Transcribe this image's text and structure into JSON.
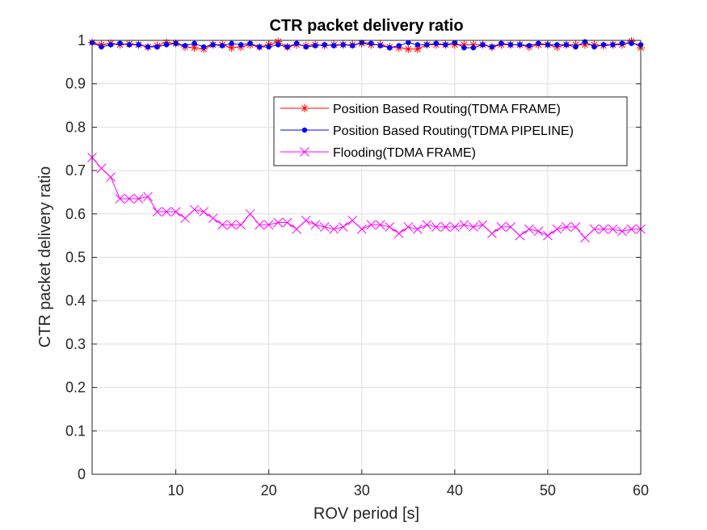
{
  "chart_data": {
    "type": "line",
    "title": "CTR packet delivery ratio",
    "xlabel": "ROV period [s]",
    "ylabel": "CTR packet delivery ratio",
    "xlim": [
      1,
      60
    ],
    "ylim": [
      0,
      1
    ],
    "xticks": [
      10,
      20,
      30,
      40,
      50,
      60
    ],
    "yticks": [
      0,
      0.1,
      0.2,
      0.3,
      0.4,
      0.5,
      0.6,
      0.7,
      0.8,
      0.9,
      1
    ],
    "grid": true,
    "legend_position": "upper-right",
    "x": [
      1,
      2,
      3,
      4,
      5,
      6,
      7,
      8,
      9,
      10,
      11,
      12,
      13,
      14,
      15,
      16,
      17,
      18,
      19,
      20,
      21,
      22,
      23,
      24,
      25,
      26,
      27,
      28,
      29,
      30,
      31,
      32,
      33,
      34,
      35,
      36,
      37,
      38,
      39,
      40,
      41,
      42,
      43,
      44,
      45,
      46,
      47,
      48,
      49,
      50,
      51,
      52,
      53,
      54,
      55,
      56,
      57,
      58,
      59,
      60
    ],
    "series": [
      {
        "name": "Position Based Routing(TDMA FRAME)",
        "color": "#ff0000",
        "marker": "asterisk",
        "values": [
          0.995,
          0.99,
          0.993,
          0.99,
          0.992,
          0.99,
          0.985,
          0.988,
          0.995,
          0.993,
          0.985,
          0.983,
          0.98,
          0.99,
          0.99,
          0.983,
          0.985,
          0.99,
          0.985,
          0.99,
          0.997,
          0.985,
          0.99,
          0.988,
          0.99,
          0.988,
          0.99,
          0.99,
          0.99,
          0.993,
          0.99,
          0.99,
          0.985,
          0.983,
          0.98,
          0.98,
          0.99,
          0.99,
          0.99,
          0.99,
          0.99,
          0.99,
          0.99,
          0.985,
          0.99,
          0.99,
          0.99,
          0.985,
          0.99,
          0.99,
          0.985,
          0.99,
          0.99,
          0.99,
          0.99,
          0.988,
          0.99,
          0.99,
          0.998,
          0.983
        ]
      },
      {
        "name": "Position Based Routing(TDMA PIPELINE)",
        "color": "#0000ff",
        "marker": "dot",
        "values": [
          0.995,
          0.985,
          0.99,
          0.993,
          0.99,
          0.99,
          0.985,
          0.985,
          0.99,
          0.993,
          0.988,
          0.993,
          0.985,
          0.99,
          0.988,
          0.993,
          0.99,
          0.993,
          0.985,
          0.985,
          0.99,
          0.985,
          0.993,
          0.985,
          0.988,
          0.99,
          0.988,
          0.99,
          0.988,
          0.995,
          0.993,
          0.988,
          0.983,
          0.988,
          0.995,
          0.99,
          0.99,
          0.993,
          0.99,
          0.995,
          0.983,
          0.983,
          0.99,
          0.985,
          0.993,
          0.99,
          0.99,
          0.988,
          0.993,
          0.99,
          0.99,
          0.99,
          0.985,
          0.997,
          0.985,
          0.99,
          0.99,
          0.993,
          0.993,
          0.99
        ]
      },
      {
        "name": "Flooding(TDMA FRAME)",
        "color": "#ff00ff",
        "marker": "x",
        "values": [
          0.73,
          0.705,
          0.685,
          0.635,
          0.635,
          0.635,
          0.64,
          0.605,
          0.605,
          0.605,
          0.59,
          0.61,
          0.605,
          0.59,
          0.575,
          0.575,
          0.575,
          0.6,
          0.575,
          0.575,
          0.58,
          0.58,
          0.565,
          0.585,
          0.575,
          0.57,
          0.565,
          0.57,
          0.585,
          0.565,
          0.575,
          0.575,
          0.57,
          0.555,
          0.57,
          0.565,
          0.575,
          0.57,
          0.57,
          0.57,
          0.575,
          0.57,
          0.575,
          0.555,
          0.57,
          0.57,
          0.55,
          0.565,
          0.56,
          0.55,
          0.565,
          0.57,
          0.57,
          0.545,
          0.565,
          0.565,
          0.565,
          0.56,
          0.565,
          0.565
        ]
      }
    ]
  }
}
